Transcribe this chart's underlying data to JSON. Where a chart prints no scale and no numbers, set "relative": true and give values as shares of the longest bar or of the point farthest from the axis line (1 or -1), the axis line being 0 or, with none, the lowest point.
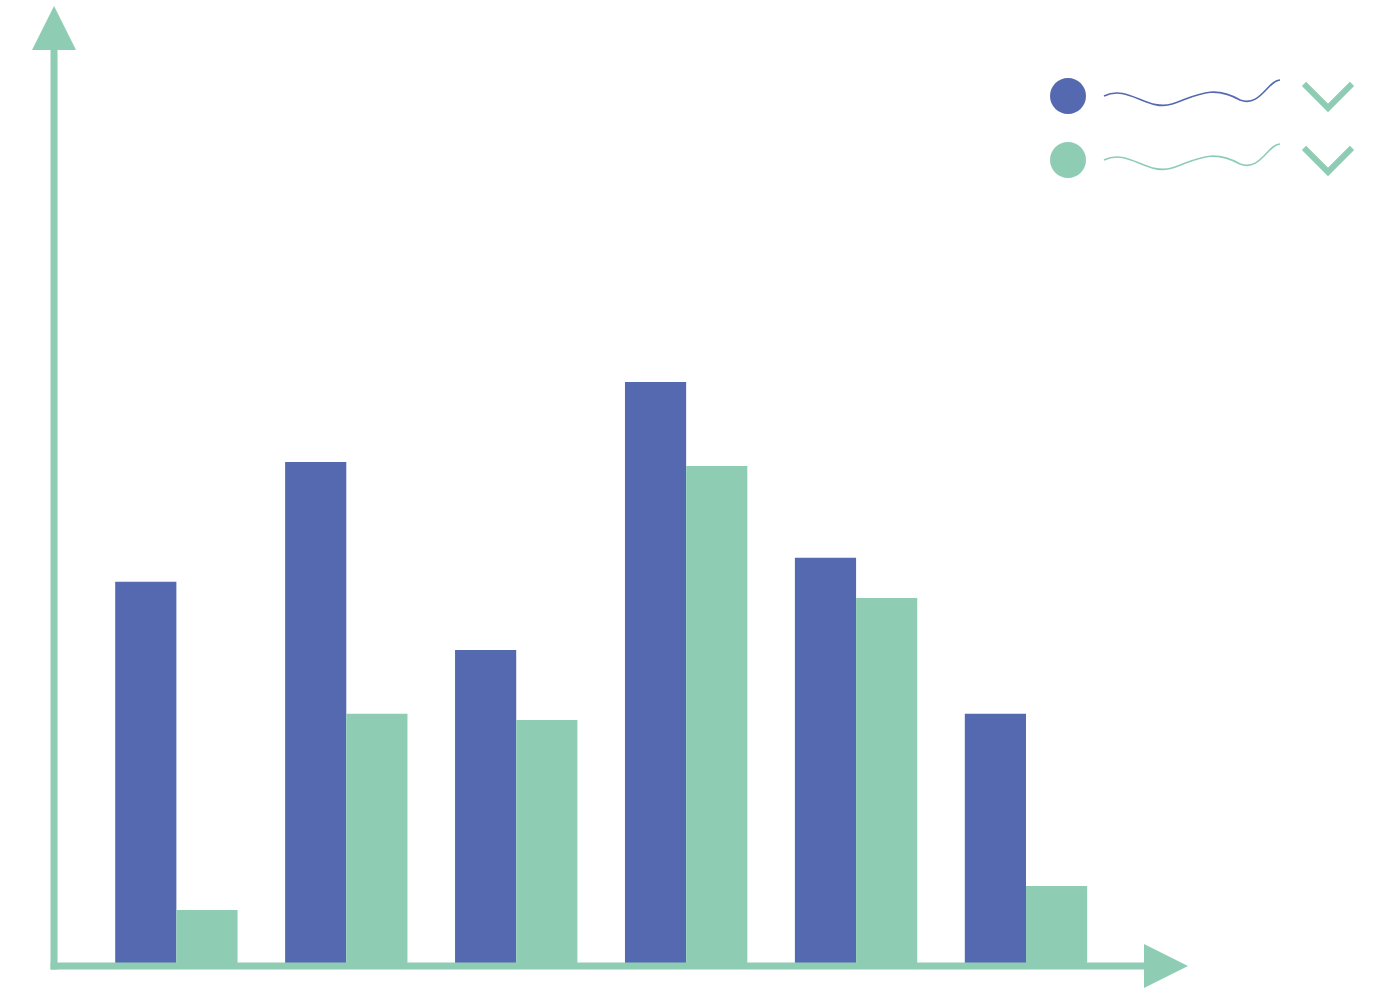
{
  "chart_data": {
    "type": "bar",
    "relative": true,
    "categories": [
      null,
      null,
      null,
      null,
      null,
      null
    ],
    "series": [
      {
        "color": "#5469b0",
        "values": [
          0.658,
          0.863,
          0.541,
          1,
          0.699,
          0.432
        ]
      },
      {
        "color": "#8ecdb4",
        "values": [
          0.096,
          0.432,
          0.421,
          0.856,
          0.63,
          0.137
        ]
      }
    ]
  }
}
